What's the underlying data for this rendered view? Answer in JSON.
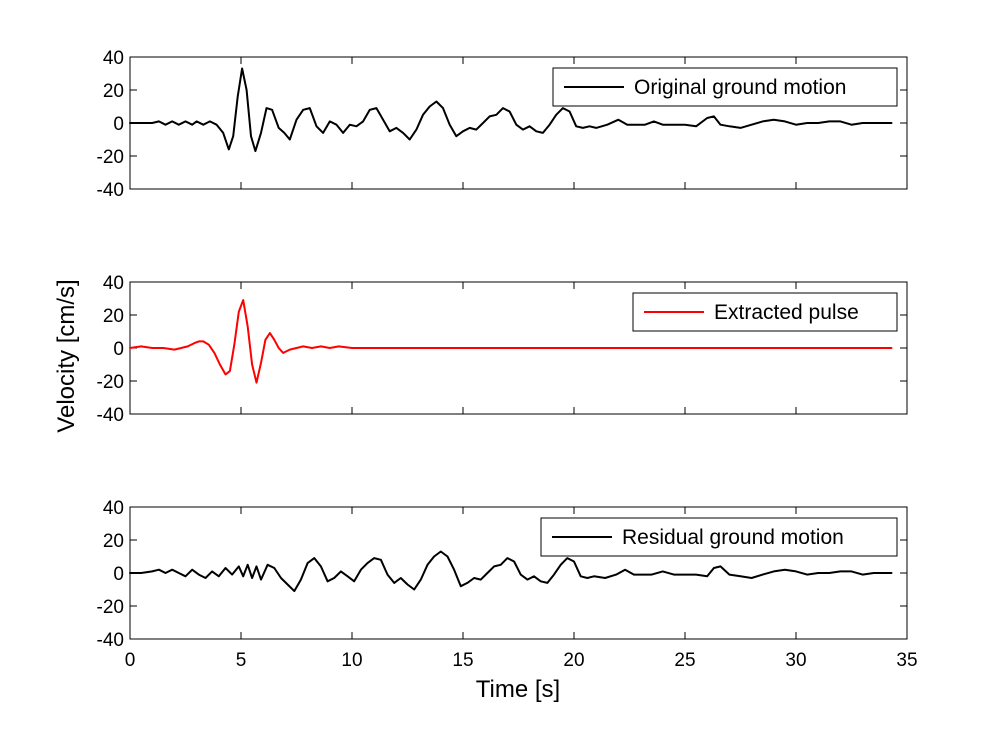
{
  "figure": {
    "xlabel": "Time [s]",
    "ylabel": "Velocity [cm/s]"
  },
  "chart_data": [
    {
      "type": "line",
      "title": "",
      "xlim": [
        0,
        35
      ],
      "ylim": [
        -40,
        40
      ],
      "xticks": [
        "0",
        "5",
        "10",
        "15",
        "20",
        "25",
        "30",
        "35"
      ],
      "yticks": [
        "40",
        "20",
        "0",
        "-20",
        "-40"
      ],
      "show_x_ticklabels": false,
      "grid": false,
      "legend_position": "top-right",
      "series": [
        {
          "name": "Original ground motion",
          "color": "#000000",
          "x": [
            0,
            1.0,
            1.3,
            1.6,
            1.9,
            2.2,
            2.5,
            2.8,
            3.0,
            3.3,
            3.6,
            3.9,
            4.2,
            4.45,
            4.65,
            4.85,
            5.05,
            5.25,
            5.45,
            5.65,
            5.9,
            6.15,
            6.4,
            6.7,
            6.95,
            7.2,
            7.5,
            7.8,
            8.1,
            8.4,
            8.7,
            9.0,
            9.3,
            9.6,
            9.9,
            10.2,
            10.5,
            10.8,
            11.1,
            11.4,
            11.7,
            12.0,
            12.3,
            12.6,
            12.9,
            13.2,
            13.5,
            13.8,
            14.1,
            14.4,
            14.7,
            15.0,
            15.3,
            15.6,
            15.9,
            16.2,
            16.5,
            16.8,
            17.1,
            17.4,
            17.7,
            18.0,
            18.3,
            18.6,
            18.9,
            19.2,
            19.5,
            19.8,
            20.1,
            20.4,
            20.7,
            21.0,
            21.5,
            22.0,
            22.4,
            22.8,
            23.2,
            23.6,
            24.0,
            24.5,
            25.0,
            25.5,
            26.0,
            26.3,
            26.6,
            27.0,
            27.5,
            28.0,
            28.5,
            29.0,
            29.5,
            30.0,
            30.5,
            31.0,
            31.5,
            32.0,
            32.5,
            33.0,
            33.5,
            34.0,
            34.3
          ],
          "y": [
            0,
            0,
            1,
            -1,
            1,
            -1,
            1,
            -1,
            1,
            -1,
            1,
            -1,
            -6,
            -16,
            -8,
            16,
            33,
            20,
            -8,
            -17,
            -6,
            9,
            8,
            -3,
            -6,
            -10,
            2,
            8,
            9,
            -2,
            -6,
            1,
            -1,
            -6,
            -1,
            -2,
            1,
            8,
            9,
            2,
            -5,
            -3,
            -6,
            -10,
            -4,
            5,
            10,
            13,
            9,
            -1,
            -8,
            -5,
            -3,
            -4,
            0,
            4,
            5,
            9,
            7,
            -1,
            -4,
            -2,
            -5,
            -6,
            -1,
            5,
            9,
            7,
            -2,
            -3,
            -2,
            -3,
            -1,
            2,
            -1,
            -1,
            -1,
            1,
            -1,
            -1,
            -1,
            -2,
            3,
            4,
            -1,
            -2,
            -3,
            -1,
            1,
            2,
            1,
            -1,
            0,
            0,
            1,
            1,
            -1,
            0,
            0,
            0,
            0
          ]
        }
      ]
    },
    {
      "type": "line",
      "title": "",
      "xlim": [
        0,
        35
      ],
      "ylim": [
        -40,
        40
      ],
      "xticks": [
        "0",
        "5",
        "10",
        "15",
        "20",
        "25",
        "30",
        "35"
      ],
      "yticks": [
        "40",
        "20",
        "0",
        "-20",
        "-40"
      ],
      "show_x_ticklabels": false,
      "grid": false,
      "legend_position": "top-right",
      "series": [
        {
          "name": "Extracted pulse",
          "color": "#ff0000",
          "x": [
            0,
            0.5,
            1.0,
            1.5,
            2.0,
            2.3,
            2.6,
            2.9,
            3.1,
            3.3,
            3.55,
            3.8,
            4.05,
            4.3,
            4.5,
            4.7,
            4.9,
            5.1,
            5.3,
            5.5,
            5.7,
            5.9,
            6.1,
            6.3,
            6.5,
            6.7,
            6.9,
            7.2,
            7.5,
            7.8,
            8.2,
            8.6,
            9.0,
            9.4,
            10.0,
            15.0,
            20.0,
            25.0,
            30.0,
            34.3
          ],
          "y": [
            0,
            1,
            0,
            0,
            -1,
            0,
            1,
            3,
            4,
            4,
            2,
            -3,
            -10,
            -16,
            -14,
            2,
            22,
            29,
            13,
            -10,
            -21,
            -9,
            5,
            9,
            5,
            0,
            -3,
            -1,
            0,
            1,
            0,
            1,
            0,
            1,
            0,
            0,
            0,
            0,
            0,
            0
          ]
        }
      ]
    },
    {
      "type": "line",
      "title": "",
      "xlim": [
        0,
        35
      ],
      "ylim": [
        -40,
        40
      ],
      "xticks": [
        "0",
        "5",
        "10",
        "15",
        "20",
        "25",
        "30",
        "35"
      ],
      "yticks": [
        "40",
        "20",
        "0",
        "-20",
        "-40"
      ],
      "show_x_ticklabels": true,
      "grid": false,
      "legend_position": "top-right",
      "series": [
        {
          "name": "Residual ground motion",
          "color": "#000000",
          "x": [
            0,
            0.5,
            1.0,
            1.3,
            1.6,
            1.9,
            2.2,
            2.5,
            2.8,
            3.1,
            3.4,
            3.7,
            4.0,
            4.3,
            4.6,
            4.9,
            5.1,
            5.3,
            5.5,
            5.7,
            5.9,
            6.2,
            6.5,
            6.8,
            7.1,
            7.4,
            7.7,
            8.0,
            8.3,
            8.6,
            8.9,
            9.2,
            9.5,
            9.8,
            10.1,
            10.4,
            10.7,
            11.0,
            11.3,
            11.6,
            11.9,
            12.2,
            12.5,
            12.8,
            13.1,
            13.4,
            13.7,
            14.0,
            14.3,
            14.6,
            14.9,
            15.2,
            15.5,
            15.8,
            16.1,
            16.4,
            16.7,
            17.0,
            17.3,
            17.6,
            17.9,
            18.2,
            18.5,
            18.8,
            19.1,
            19.4,
            19.7,
            20.0,
            20.3,
            20.6,
            20.9,
            21.4,
            21.9,
            22.3,
            22.7,
            23.1,
            23.5,
            24.0,
            24.5,
            25.0,
            25.5,
            26.0,
            26.3,
            26.6,
            27.0,
            27.5,
            28.0,
            28.5,
            29.0,
            29.5,
            30.0,
            30.5,
            31.0,
            31.5,
            32.0,
            32.5,
            33.0,
            33.5,
            34.0,
            34.3
          ],
          "y": [
            0,
            0,
            1,
            2,
            0,
            2,
            0,
            -2,
            2,
            -1,
            -3,
            1,
            -2,
            3,
            -1,
            4,
            -2,
            5,
            -3,
            4,
            -4,
            5,
            3,
            -3,
            -7,
            -11,
            -4,
            6,
            9,
            4,
            -5,
            -3,
            1,
            -2,
            -5,
            2,
            6,
            9,
            8,
            -1,
            -6,
            -3,
            -7,
            -10,
            -4,
            5,
            10,
            13,
            10,
            2,
            -8,
            -6,
            -3,
            -4,
            0,
            4,
            5,
            9,
            7,
            -1,
            -4,
            -2,
            -5,
            -6,
            -1,
            5,
            9,
            7,
            -2,
            -3,
            -2,
            -3,
            -1,
            2,
            -1,
            -1,
            -1,
            1,
            -1,
            -1,
            -1,
            -2,
            3,
            4,
            -1,
            -2,
            -3,
            -1,
            1,
            2,
            1,
            -1,
            0,
            0,
            1,
            1,
            -1,
            0,
            0,
            0
          ]
        }
      ]
    }
  ]
}
